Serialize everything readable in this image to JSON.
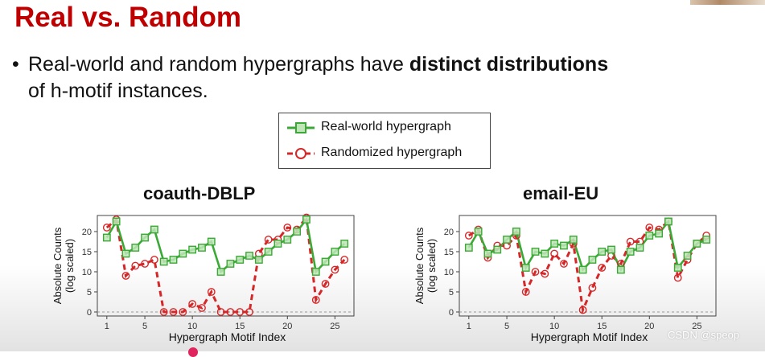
{
  "title": "Real vs. Random",
  "bullet": {
    "symbol": "•",
    "text_line1_before": "Real-world and random hypergraphs have ",
    "text_line1_bold": "distinct distributions",
    "text_line2": "of h-motif instances."
  },
  "legend": {
    "real_label": "Real-world hypergraph",
    "random_label": "Randomized hypergraph",
    "real_color": "#3aa935",
    "random_color": "#d62728"
  },
  "watermark": "CSDN @speop",
  "chart_data": [
    {
      "type": "line",
      "title": "coauth-DBLP",
      "xlabel": "Hypergraph Motif Index",
      "ylabel": "Absolute Counts (log scaled)",
      "x_ticks": [
        1,
        5,
        10,
        15,
        20,
        25
      ],
      "y_ticks": [
        0,
        5,
        10,
        15,
        20
      ],
      "xlim": [
        0,
        27
      ],
      "ylim": [
        -1,
        24
      ],
      "x": [
        1,
        2,
        3,
        4,
        5,
        6,
        7,
        8,
        9,
        10,
        11,
        12,
        13,
        14,
        15,
        16,
        17,
        18,
        19,
        20,
        21,
        22,
        23,
        24,
        25,
        26
      ],
      "series": [
        {
          "name": "Real-world hypergraph",
          "values": [
            18.5,
            22.5,
            14.5,
            16,
            18.5,
            20.5,
            12.5,
            13,
            14.5,
            15.5,
            16,
            17.5,
            10,
            12,
            13,
            14,
            13,
            15,
            17,
            18,
            20,
            23,
            10,
            12.5,
            15,
            17
          ]
        },
        {
          "name": "Randomized hypergraph",
          "values": [
            21,
            23,
            9,
            11.5,
            12,
            13,
            0,
            0,
            0,
            2,
            1,
            5,
            0,
            0,
            0,
            0,
            14.5,
            18,
            18,
            21,
            20.5,
            23.5,
            3,
            7,
            10.5,
            13
          ]
        }
      ]
    },
    {
      "type": "line",
      "title": "email-EU",
      "xlabel": "Hypergraph Motif Index",
      "ylabel": "Absolute Counts (log scaled)",
      "x_ticks": [
        1,
        5,
        10,
        15,
        20,
        25
      ],
      "y_ticks": [
        0,
        5,
        10,
        15,
        20
      ],
      "xlim": [
        0,
        27
      ],
      "ylim": [
        -1,
        24
      ],
      "x": [
        1,
        2,
        3,
        4,
        5,
        6,
        7,
        8,
        9,
        10,
        11,
        12,
        13,
        14,
        15,
        16,
        17,
        18,
        19,
        20,
        21,
        22,
        23,
        24,
        25,
        26
      ],
      "series": [
        {
          "name": "Real-world hypergraph",
          "values": [
            16,
            20,
            14.5,
            15.5,
            18,
            20,
            11,
            15,
            14.5,
            17,
            16.5,
            18,
            10.5,
            13,
            15,
            15.5,
            10.5,
            15,
            16,
            19,
            19.5,
            22.5,
            11,
            14,
            17,
            18
          ]
        },
        {
          "name": "Randomized hypergraph",
          "values": [
            19,
            20.5,
            13.5,
            16.5,
            16.5,
            19,
            5,
            10,
            9.5,
            14.5,
            12,
            17,
            0.5,
            6,
            11,
            14,
            12,
            17.5,
            17.5,
            21,
            20.5,
            22.5,
            8.5,
            13,
            17,
            19
          ]
        }
      ]
    }
  ]
}
